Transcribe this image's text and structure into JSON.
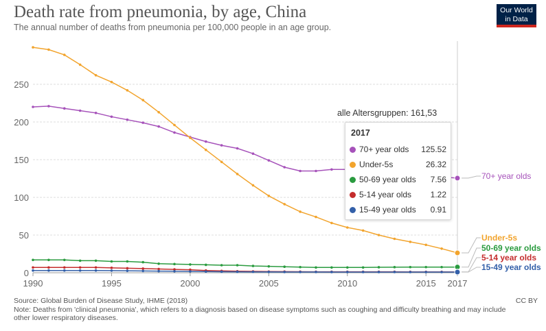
{
  "header": {
    "title": "Death rate from pneumonia, by age, China",
    "subtitle": "The annual number of deaths from pneumonia per 100,000 people in an age group."
  },
  "logo": {
    "line1": "Our World",
    "line2": "in Data"
  },
  "footer": {
    "source": "Source: Global Burden of Disease Study, IHME (2018)",
    "note": "Note: Deaths from 'clinical pneumonia', which refers to a diagnosis based on disease symptoms such as coughing and difficulty breathing and may include other lower respiratory diseases.",
    "license": "CC BY"
  },
  "tooltip": {
    "all_ages": "alle Altersgruppen: 161,53",
    "year": "2017",
    "rows": [
      {
        "name": "70+ year olds",
        "value": "125.52",
        "color": "#a652ba"
      },
      {
        "name": "Under-5s",
        "value": "26.32",
        "color": "#f2a42d"
      },
      {
        "name": "50-69 year olds",
        "value": "7.56",
        "color": "#2a9b3f"
      },
      {
        "name": "5-14 year olds",
        "value": "1.22",
        "color": "#c42c2c"
      },
      {
        "name": "15-49 year olds",
        "value": "0.91",
        "color": "#3360a9"
      }
    ]
  },
  "chart_data": {
    "type": "line",
    "title": "Death rate from pneumonia, by age, China",
    "x": [
      1990,
      1991,
      1992,
      1993,
      1994,
      1995,
      1996,
      1997,
      1998,
      1999,
      2000,
      2001,
      2002,
      2003,
      2004,
      2005,
      2006,
      2007,
      2008,
      2009,
      2010,
      2011,
      2012,
      2013,
      2014,
      2015,
      2016,
      2017
    ],
    "xlim": [
      1990,
      2017
    ],
    "ylim": [
      0,
      300
    ],
    "x_ticks": [
      "1990",
      "1995",
      "2000",
      "2005",
      "2010",
      "2015",
      "2017"
    ],
    "y_ticks": [
      "0",
      "50",
      "100",
      "150",
      "200",
      "250"
    ],
    "grid": "horizontal-dashed",
    "legend": "right, end-of-line labels",
    "series": [
      {
        "name": "70+ year olds",
        "color": "#a652ba",
        "label_color": "#a652ba",
        "values": [
          220,
          221,
          218,
          215,
          212,
          207,
          203,
          199,
          194,
          186,
          180,
          174,
          169,
          165,
          158,
          149,
          140,
          135,
          135,
          137,
          137,
          136,
          133,
          131,
          129,
          128,
          127,
          125.52
        ]
      },
      {
        "name": "Under-5s",
        "color": "#f2a42d",
        "label_color": "#f2a42d",
        "values": [
          299,
          296,
          289,
          276,
          262,
          253,
          242,
          229,
          213,
          196,
          179,
          163,
          147,
          131,
          116,
          102,
          91,
          81,
          74,
          66,
          60,
          56,
          50,
          45,
          41,
          37,
          32,
          26.32
        ]
      },
      {
        "name": "50-69 year olds",
        "color": "#2a9b3f",
        "label_color": "#2a9b3f",
        "values": [
          17,
          17,
          17,
          16,
          16,
          15,
          15,
          14,
          12,
          11.5,
          11,
          10.5,
          10,
          10,
          9,
          8.5,
          8,
          7.5,
          7,
          7,
          7,
          7,
          7.3,
          7.4,
          7.5,
          7.5,
          7.5,
          7.56
        ]
      },
      {
        "name": "5-14 year olds",
        "color": "#c42c2c",
        "label_color": "#c42c2c",
        "values": [
          7,
          7,
          7,
          7,
          7,
          6.5,
          6,
          5.5,
          5,
          4.5,
          4,
          3,
          2.5,
          2,
          1.8,
          1.6,
          1.5,
          1.4,
          1.3,
          1.3,
          1.3,
          1.3,
          1.3,
          1.3,
          1.2,
          1.2,
          1.2,
          1.22
        ]
      },
      {
        "name": "15-49 year olds",
        "color": "#3360a9",
        "label_color": "#3360a9",
        "values": [
          3,
          3,
          3,
          3,
          3,
          2.8,
          2.6,
          2.4,
          2.2,
          2,
          1.8,
          1.6,
          1.4,
          1.3,
          1.2,
          1.1,
          1,
          1,
          1,
          0.95,
          0.95,
          0.95,
          0.95,
          0.93,
          0.92,
          0.91,
          0.91,
          0.91
        ]
      }
    ]
  }
}
